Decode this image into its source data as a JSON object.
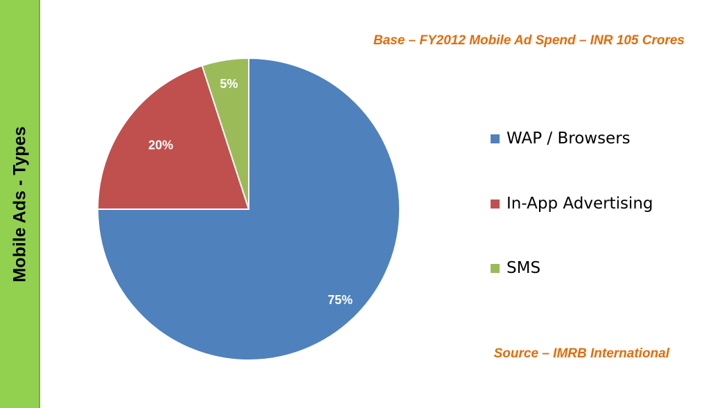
{
  "sidebar": {
    "title": "Mobile  Ads - Types"
  },
  "notes": {
    "base": "Base – FY2012 Mobile Ad Spend – INR 105 Crores",
    "source": "Source – IMRB International"
  },
  "chart_data": {
    "type": "pie",
    "categories": [
      "WAP / Browsers",
      "In-App Advertising",
      "SMS"
    ],
    "values": [
      75,
      20,
      5
    ],
    "data_labels": [
      "75%",
      "20%",
      "5%"
    ],
    "colors": [
      "#4F81BD",
      "#C0504D",
      "#9BBB59"
    ],
    "legend_position": "right",
    "start": "12 o'clock, clockwise"
  }
}
